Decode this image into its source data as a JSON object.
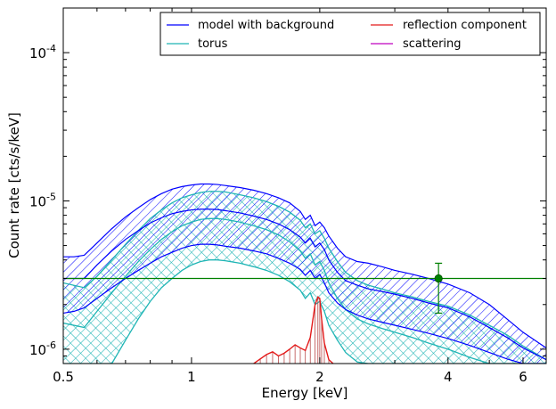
{
  "chart_data": {
    "type": "line",
    "xlabel": "Energy [keV]",
    "ylabel": "Count rate [cts/s/keV]",
    "xscale": "log",
    "yscale": "log",
    "xlim": [
      0.5,
      6.8
    ],
    "ylim": [
      8e-07,
      0.0002
    ],
    "x_ticks": [
      {
        "value": 0.5,
        "label": "0.5"
      },
      {
        "value": 1,
        "label": "1"
      },
      {
        "value": 2,
        "label": "2"
      },
      {
        "value": 4,
        "label": "4"
      },
      {
        "value": 6,
        "label": "6"
      }
    ],
    "y_ticks": [
      {
        "value": 1e-06,
        "base": "10",
        "exp": "-6"
      },
      {
        "value": 1e-05,
        "base": "10",
        "exp": "-5"
      },
      {
        "value": 0.0001,
        "base": "10",
        "exp": "-4"
      }
    ],
    "legend_position": "top-right",
    "legend": [
      {
        "label": "model with background",
        "color": "#0000ff"
      },
      {
        "label": "reflection component",
        "color": "#ff0000"
      },
      {
        "label": "torus",
        "color": "#00bfbf"
      },
      {
        "label": "scattering",
        "color": "#bf00bf"
      }
    ],
    "colors": {
      "model": "#0000ff",
      "torus": "#1fb5b5",
      "reflection": "#e41a1a",
      "scattering": "#bf00bf",
      "data": "#008000"
    },
    "series": [
      {
        "name": "model with background",
        "color": "#0000ff",
        "x": [
          0.5,
          0.53,
          0.56,
          0.6,
          0.65,
          0.7,
          0.75,
          0.8,
          0.85,
          0.9,
          0.95,
          1.0,
          1.05,
          1.1,
          1.15,
          1.2,
          1.3,
          1.4,
          1.5,
          1.6,
          1.7,
          1.8,
          1.85,
          1.9,
          1.95,
          2.0,
          2.05,
          2.1,
          2.2,
          2.3,
          2.45,
          2.6,
          2.8,
          3.0,
          3.3,
          3.6,
          4.0,
          4.5,
          5.0,
          5.5,
          6.0,
          6.8
        ],
        "upper": [
          4.2e-06,
          4.2e-06,
          4.3e-06,
          5.2e-06,
          6.5e-06,
          7.8e-06,
          9e-06,
          1.02e-05,
          1.12e-05,
          1.2e-05,
          1.25e-05,
          1.28e-05,
          1.3e-05,
          1.3e-05,
          1.29e-05,
          1.27e-05,
          1.23e-05,
          1.18e-05,
          1.12e-05,
          1.05e-05,
          9.7e-06,
          8.5e-06,
          7.5e-06,
          8e-06,
          6.8e-06,
          7.2e-06,
          6.6e-06,
          5.8e-06,
          4.8e-06,
          4.2e-06,
          3.9e-06,
          3.8e-06,
          3.6e-06,
          3.4e-06,
          3.2e-06,
          3e-06,
          2.75e-06,
          2.4e-06,
          2e-06,
          1.6e-06,
          1.3e-06,
          1.02e-06
        ],
        "median": [
          3e-06,
          3e-06,
          3e-06,
          3.7e-06,
          4.6e-06,
          5.5e-06,
          6.3e-06,
          7.1e-06,
          7.7e-06,
          8.2e-06,
          8.5e-06,
          8.7e-06,
          8.8e-06,
          8.8e-06,
          8.75e-06,
          8.6e-06,
          8.3e-06,
          7.9e-06,
          7.5e-06,
          7e-06,
          6.4e-06,
          5.7e-06,
          5.2e-06,
          5.6e-06,
          4.9e-06,
          5.2e-06,
          4.7e-06,
          4e-06,
          3.3e-06,
          2.9e-06,
          2.7e-06,
          2.55e-06,
          2.45e-06,
          2.35e-06,
          2.2e-06,
          2.05e-06,
          1.9e-06,
          1.65e-06,
          1.4e-06,
          1.2e-06,
          1.02e-06,
          8.5e-07
        ],
        "lower": [
          1.75e-06,
          1.8e-06,
          1.9e-06,
          2.2e-06,
          2.6e-06,
          3e-06,
          3.4e-06,
          3.8e-06,
          4.2e-06,
          4.5e-06,
          4.8e-06,
          5e-06,
          5.1e-06,
          5.1e-06,
          5.05e-06,
          4.95e-06,
          4.8e-06,
          4.6e-06,
          4.4e-06,
          4.1e-06,
          3.8e-06,
          3.45e-06,
          3.15e-06,
          3.4e-06,
          3e-06,
          3.2e-06,
          2.8e-06,
          2.4e-06,
          2.05e-06,
          1.85e-06,
          1.7e-06,
          1.6e-06,
          1.52e-06,
          1.45e-06,
          1.36e-06,
          1.28e-06,
          1.18e-06,
          1.06e-06,
          9.5e-07,
          8.6e-07,
          8e-07,
          8e-07
        ]
      },
      {
        "name": "torus",
        "color": "#1fb5b5",
        "x": [
          0.5,
          0.56,
          0.6,
          0.65,
          0.7,
          0.75,
          0.8,
          0.85,
          0.9,
          0.95,
          1.0,
          1.05,
          1.1,
          1.15,
          1.2,
          1.3,
          1.4,
          1.5,
          1.6,
          1.7,
          1.8,
          1.85,
          1.9,
          1.95,
          2.0,
          2.05,
          2.1,
          2.2,
          2.3,
          2.45,
          2.6,
          2.8,
          3.0,
          3.3,
          3.6,
          4.0,
          4.5,
          5.0,
          5.5,
          6.0,
          6.8
        ],
        "upper": [
          2.8e-06,
          2.6e-06,
          3.1e-06,
          4e-06,
          5.1e-06,
          6.3e-06,
          7.6e-06,
          8.7e-06,
          9.7e-06,
          1.05e-05,
          1.1e-05,
          1.14e-05,
          1.16e-05,
          1.16e-05,
          1.15e-05,
          1.1e-05,
          1.05e-05,
          9.9e-06,
          9.2e-06,
          8.4e-06,
          7.4e-06,
          6.6e-06,
          7e-06,
          6e-06,
          6.3e-06,
          5.6e-06,
          4.8e-06,
          3.9e-06,
          3.3e-06,
          2.9e-06,
          2.7e-06,
          2.55e-06,
          2.4e-06,
          2.25e-06,
          2.1e-06,
          1.95e-06,
          1.7e-06,
          1.45e-06,
          1.25e-06,
          1.05e-06,
          8.5e-07
        ],
        "median": [
          1.5e-06,
          1.4e-06,
          1.8e-06,
          2.4e-06,
          3.1e-06,
          3.9e-06,
          4.7e-06,
          5.5e-06,
          6.2e-06,
          6.8e-06,
          7.2e-06,
          7.5e-06,
          7.6e-06,
          7.6e-06,
          7.5e-06,
          7.2e-06,
          6.8e-06,
          6.4e-06,
          5.9e-06,
          5.3e-06,
          4.6e-06,
          4.1e-06,
          4.4e-06,
          3.7e-06,
          3.9e-06,
          3.4e-06,
          2.8e-06,
          2.2e-06,
          1.85e-06,
          1.6e-06,
          1.48e-06,
          1.38e-06,
          1.3e-06,
          1.2e-06,
          1.1e-06,
          1e-06,
          8.8e-07,
          8e-07,
          8e-07,
          8e-07,
          8e-07
        ],
        "lower": [
          8e-07,
          8e-07,
          8e-07,
          8e-07,
          1.15e-06,
          1.6e-06,
          2.1e-06,
          2.6e-06,
          3e-06,
          3.4e-06,
          3.7e-06,
          3.9e-06,
          4e-06,
          4e-06,
          3.95e-06,
          3.8e-06,
          3.6e-06,
          3.4e-06,
          3.15e-06,
          2.85e-06,
          2.5e-06,
          2.2e-06,
          2.4e-06,
          2e-06,
          2.1e-06,
          1.8e-06,
          1.45e-06,
          1.15e-06,
          9.5e-07,
          8.2e-07,
          8e-07,
          8e-07,
          8e-07,
          8e-07,
          8e-07,
          8e-07,
          8e-07,
          8e-07,
          8e-07,
          8e-07,
          8e-07
        ]
      },
      {
        "name": "reflection component",
        "color": "#e41a1a",
        "x": [
          1.4,
          1.45,
          1.5,
          1.55,
          1.6,
          1.65,
          1.7,
          1.75,
          1.8,
          1.85,
          1.9,
          1.95,
          1.98,
          2.0,
          2.02,
          2.05,
          2.1,
          2.15
        ],
        "y": [
          8e-07,
          8.6e-07,
          9.2e-07,
          9.6e-07,
          9e-07,
          9.4e-07,
          1e-06,
          1.07e-06,
          1.02e-06,
          9.8e-07,
          1.2e-06,
          2e-06,
          2.25e-06,
          2.2e-06,
          1.6e-06,
          1.1e-06,
          8.5e-07,
          8e-07
        ]
      },
      {
        "name": "background",
        "color": "#008000",
        "x": [
          0.5,
          6.8
        ],
        "y": [
          3e-06,
          3e-06
        ]
      }
    ],
    "data_points": [
      {
        "x": 3.8,
        "y": 3e-06,
        "yerr_low": 1.75e-06,
        "yerr_high": 3.8e-06
      }
    ]
  }
}
